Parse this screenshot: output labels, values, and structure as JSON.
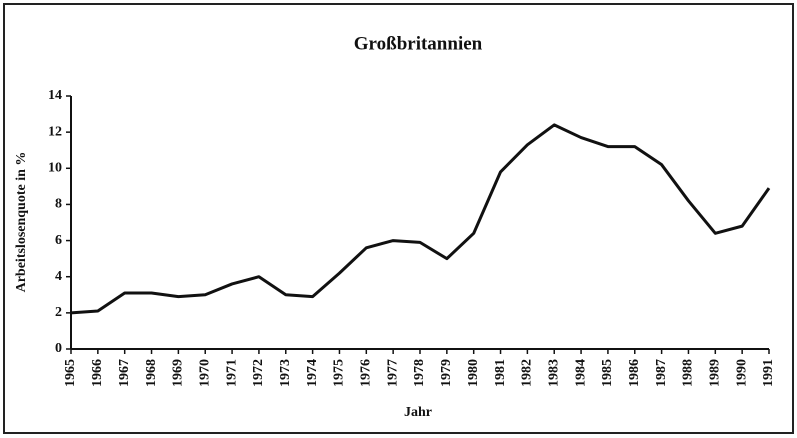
{
  "chart_data": {
    "type": "line",
    "title": "Großbritannien",
    "x_label": "Jahr",
    "y_label": "Arbeitslosenquote in %",
    "categories": [
      "1965",
      "1966",
      "1967",
      "1968",
      "1969",
      "1970",
      "1971",
      "1972",
      "1973",
      "1974",
      "1975",
      "1976",
      "1977",
      "1978",
      "1979",
      "1980",
      "1981",
      "1982",
      "1983",
      "1984",
      "1985",
      "1986",
      "1987",
      "1988",
      "1989",
      "1990",
      "1991"
    ],
    "values": [
      2.0,
      2.1,
      3.1,
      3.1,
      2.9,
      3.0,
      3.6,
      4.0,
      3.0,
      2.9,
      4.2,
      5.6,
      6.0,
      5.9,
      5.0,
      6.4,
      9.8,
      11.3,
      12.4,
      11.7,
      11.2,
      11.2,
      10.2,
      8.2,
      6.4,
      6.8,
      8.9
    ],
    "color": "#111111",
    "ylim": [
      0,
      14
    ],
    "yticks": [
      0,
      2,
      4,
      6,
      8,
      10,
      12,
      14
    ],
    "grid": false
  }
}
